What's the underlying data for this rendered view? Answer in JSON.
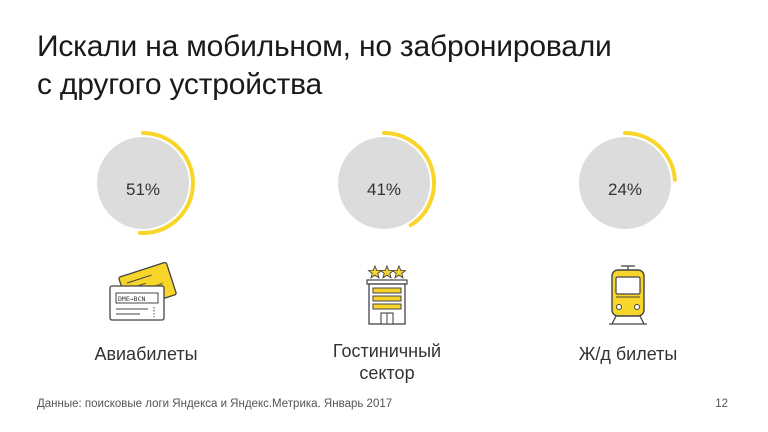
{
  "slide": {
    "title_line1": "Искали на мобильном, но забронировали",
    "title_line2": "с другого устройства"
  },
  "colors": {
    "accent": "#f7d52a",
    "disc": "#dcdcdc",
    "icon_stroke": "#444444"
  },
  "stats": [
    {
      "value": "51%",
      "fraction": 0.51,
      "label_lines": [
        "Авиабилеты"
      ],
      "icon": "air-tickets-icon"
    },
    {
      "value": "41%",
      "fraction": 0.41,
      "label_lines": [
        "Гостиничный",
        "сектор"
      ],
      "icon": "hotel-icon"
    },
    {
      "value": "24%",
      "fraction": 0.24,
      "label_lines": [
        "Ж/д билеты"
      ],
      "icon": "train-icon"
    }
  ],
  "ticket_text": {
    "front": "DME→BCN",
    "back": "DME"
  },
  "footer": {
    "source": "Данные: поисковые логи Яндекса и Яндекс.Метрика. Январь 2017",
    "page_number": "12"
  }
}
